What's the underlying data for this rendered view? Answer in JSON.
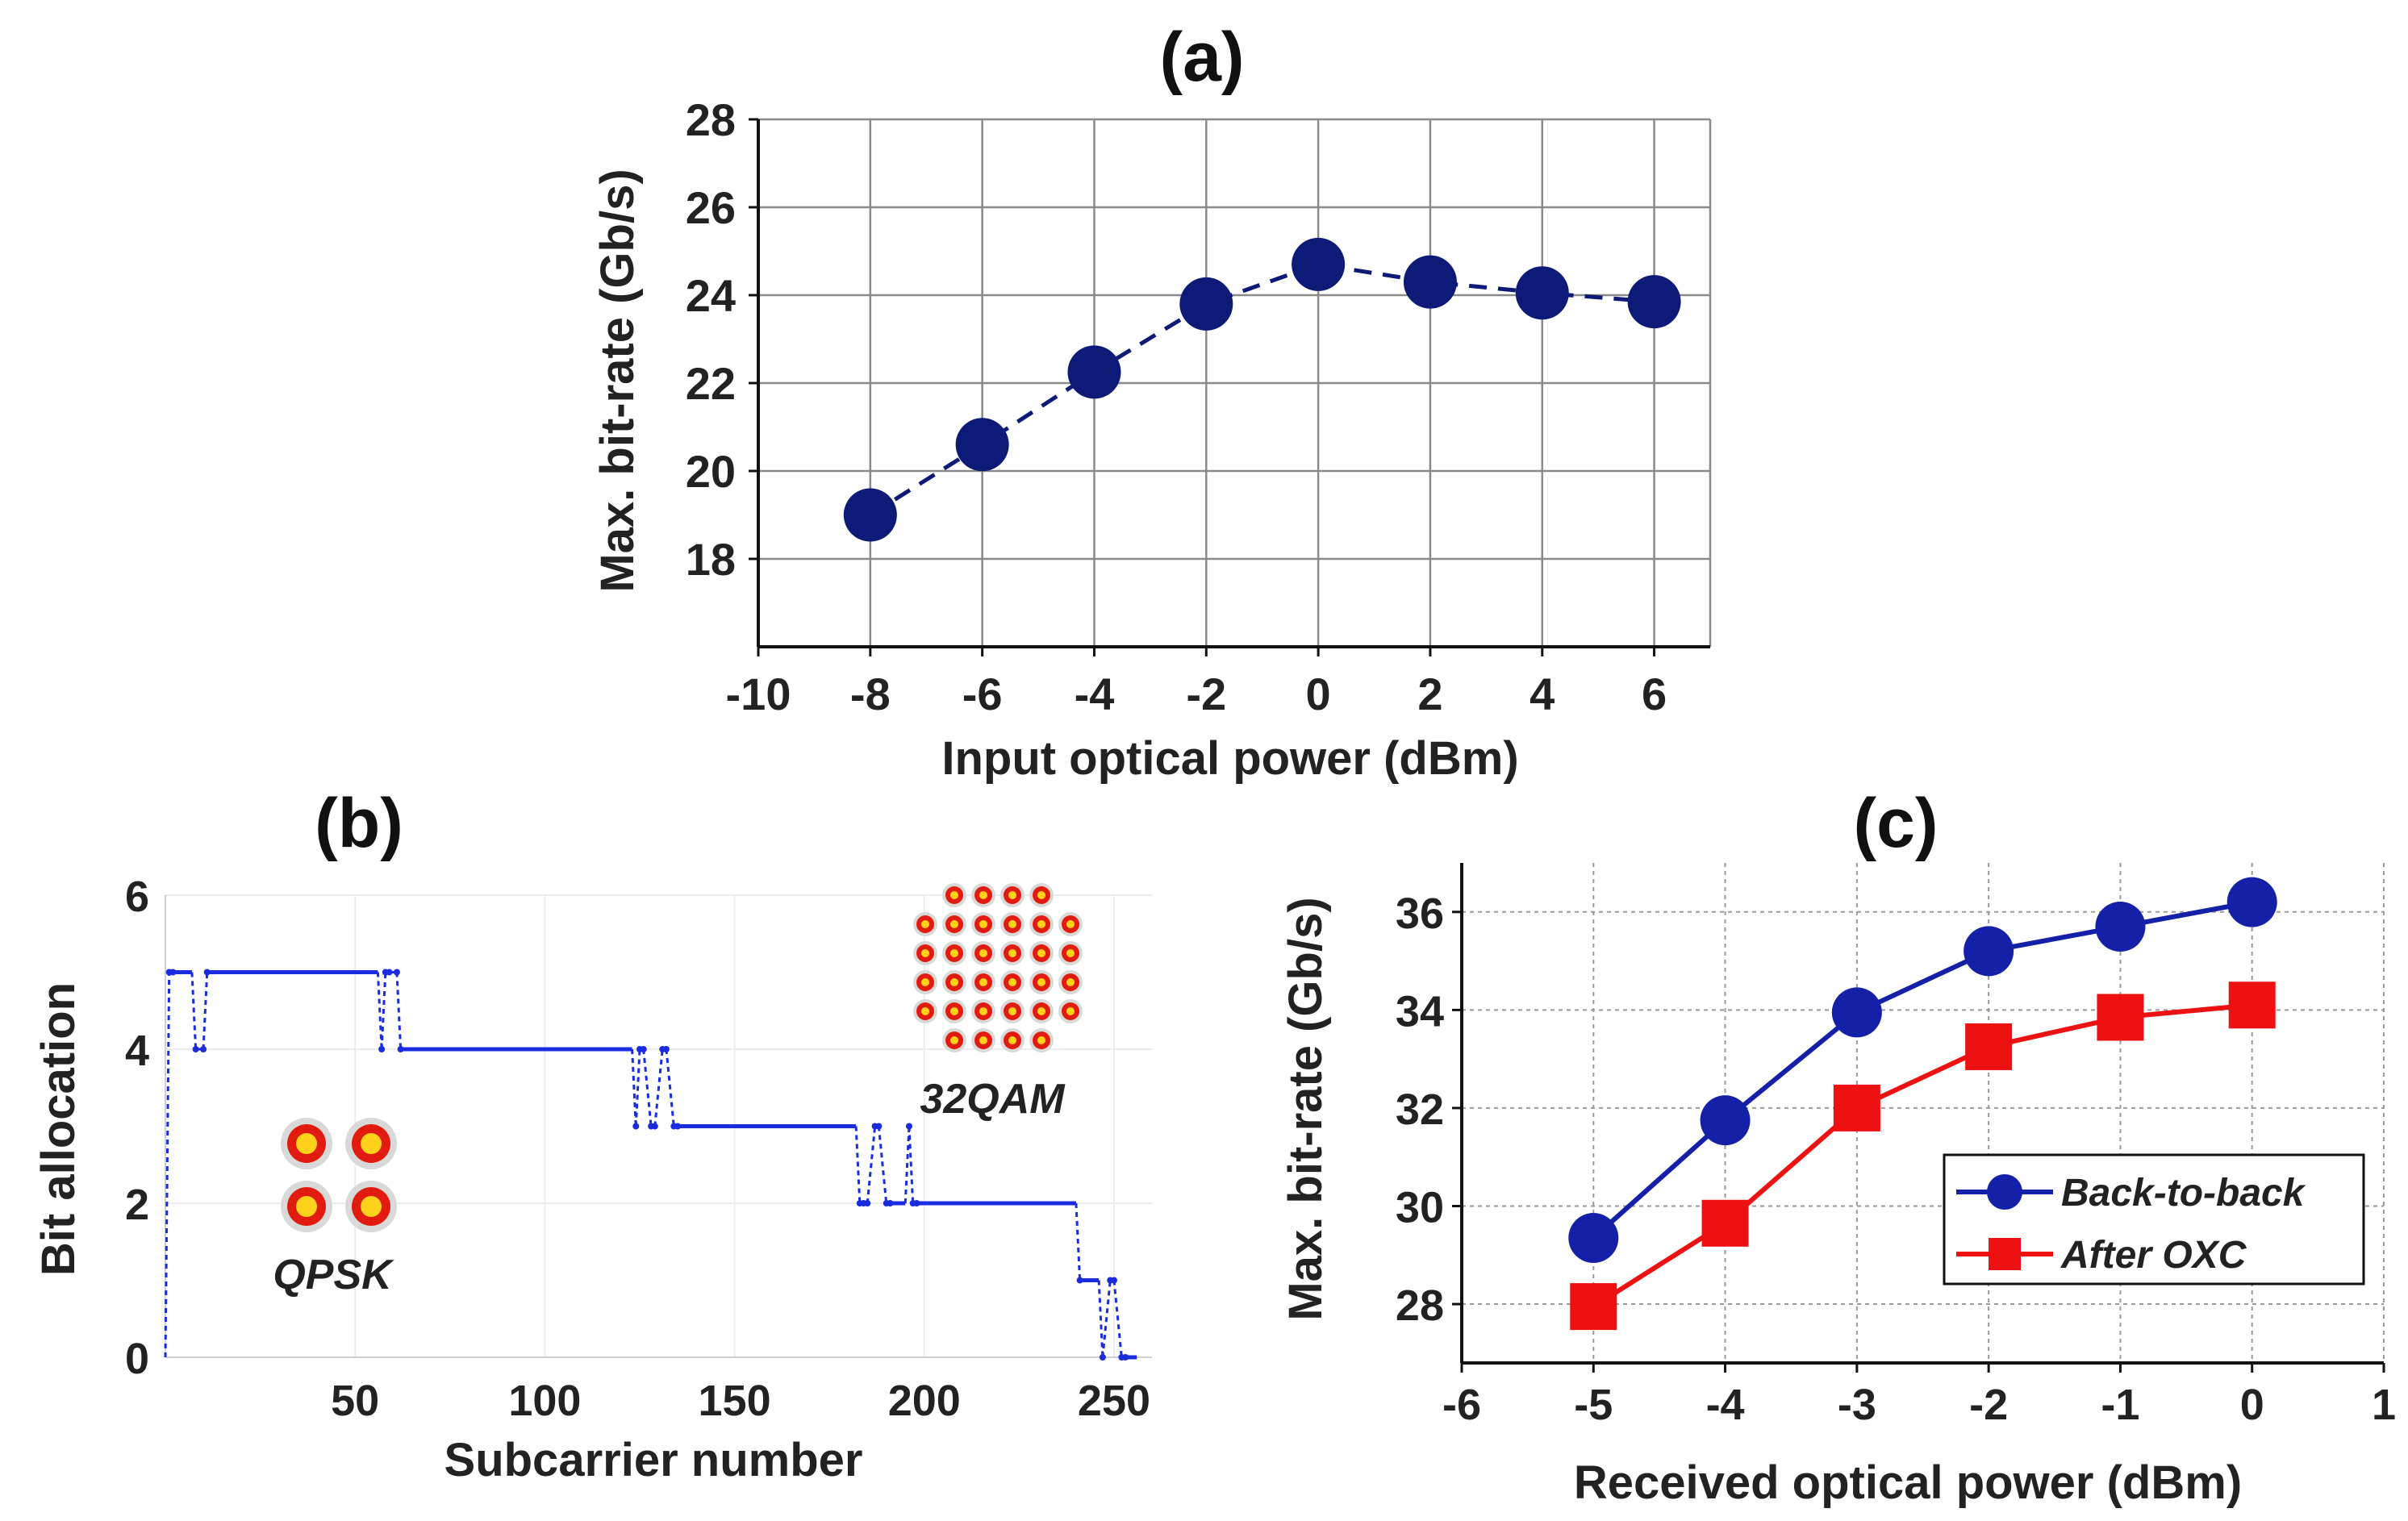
{
  "chart_data": [
    {
      "id": "a",
      "type": "line",
      "panel_label": "(a)",
      "xlabel": "Input optical power (dBm)",
      "ylabel": "Max. bit-rate (Gb/s)",
      "xlim": [
        -10,
        7
      ],
      "ylim": [
        16,
        28
      ],
      "xticks": [
        -10,
        -8,
        -6,
        -4,
        -2,
        0,
        2,
        4,
        6
      ],
      "xtick_labels": [
        "-10",
        "-8",
        "-6",
        "-4",
        "-2",
        "0",
        "2",
        "4",
        "6"
      ],
      "yticks": [
        18,
        20,
        22,
        24,
        26,
        28
      ],
      "ytick_labels": [
        "18",
        "20",
        "22",
        "24",
        "26",
        "28"
      ],
      "grid": true,
      "series": [
        {
          "name": "Max. bit-rate",
          "color": "#0d1a78",
          "line_style": "dashed",
          "marker": "circle",
          "x": [
            -8,
            -6,
            -4,
            -2,
            0,
            2,
            4,
            6
          ],
          "y": [
            19.0,
            20.6,
            22.25,
            23.8,
            24.7,
            24.3,
            24.05,
            23.85
          ]
        }
      ]
    },
    {
      "id": "b",
      "type": "line",
      "panel_label": "(b)",
      "xlabel": "Subcarrier number",
      "ylabel": "Bit allocation",
      "xlim": [
        0,
        260
      ],
      "ylim": [
        0,
        6
      ],
      "xticks": [
        50,
        100,
        150,
        200,
        250
      ],
      "xtick_labels": [
        "50",
        "100",
        "150",
        "200",
        "250"
      ],
      "yticks": [
        0,
        2,
        4,
        6
      ],
      "ytick_labels": [
        "0",
        "2",
        "4",
        "6"
      ],
      "grid": true,
      "series": [
        {
          "name": "Bit allocation",
          "color": "#1a2be0",
          "line_style": "step",
          "x": [
            0,
            1,
            2,
            7,
            8,
            10,
            11,
            56,
            57,
            58,
            59,
            61,
            62,
            123,
            124,
            125,
            126,
            128,
            129,
            131,
            132,
            134,
            135,
            182,
            183,
            184,
            185,
            187,
            188,
            190,
            191,
            195,
            196,
            197,
            198,
            240,
            241,
            246,
            247,
            249,
            250,
            252,
            253,
            256
          ],
          "y": [
            0,
            5,
            5,
            5,
            4,
            4,
            5,
            5,
            4,
            5,
            5,
            5,
            4,
            4,
            3,
            4,
            4,
            3,
            3,
            4,
            4,
            3,
            3,
            3,
            2,
            2,
            2,
            3,
            3,
            2,
            2,
            2,
            3,
            2,
            2,
            2,
            1,
            1,
            0,
            1,
            1,
            0,
            0,
            0
          ]
        }
      ],
      "annotations": [
        {
          "text": "QPSK",
          "near": "lower-left inset constellation"
        },
        {
          "text": "32QAM",
          "near": "upper-right inset constellation"
        }
      ]
    },
    {
      "id": "c",
      "type": "line",
      "panel_label": "(c)",
      "xlabel": "Received optical power (dBm)",
      "ylabel": "Max. bit-rate (Gb/s)",
      "xlim": [
        -6,
        1
      ],
      "ylim": [
        26.8,
        37
      ],
      "xticks": [
        -6,
        -5,
        -4,
        -3,
        -2,
        -1,
        0,
        1
      ],
      "xtick_labels": [
        "-6",
        "-5",
        "-4",
        "-3",
        "-2",
        "-1",
        "0",
        "1"
      ],
      "yticks": [
        28,
        30,
        32,
        34,
        36
      ],
      "ytick_labels": [
        "28",
        "30",
        "32",
        "34",
        "36"
      ],
      "grid": true,
      "legend_position": "lower-right",
      "series": [
        {
          "name": "Back-to-back",
          "color": "#1520a8",
          "marker": "circle",
          "x": [
            -5,
            -4,
            -3,
            -2,
            -1,
            0
          ],
          "y": [
            29.35,
            31.75,
            33.95,
            35.2,
            35.7,
            36.2
          ]
        },
        {
          "name": "After OXC",
          "color": "#ee1111",
          "marker": "square",
          "x": [
            -5,
            -4,
            -3,
            -2,
            -1,
            0
          ],
          "y": [
            27.95,
            29.65,
            32.0,
            33.25,
            33.85,
            34.1
          ]
        }
      ]
    }
  ]
}
